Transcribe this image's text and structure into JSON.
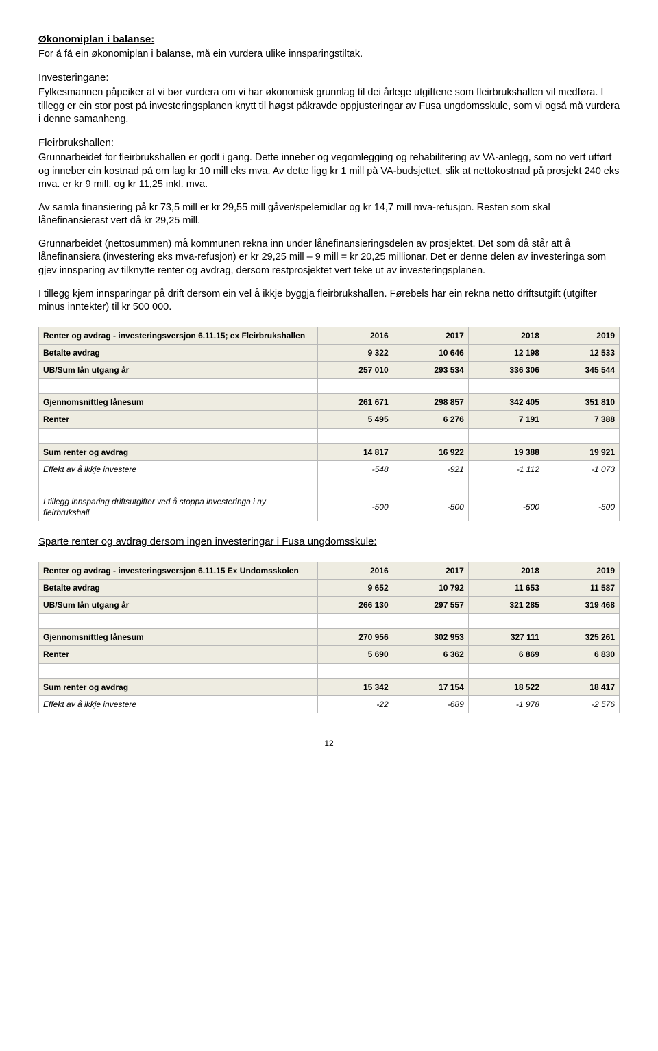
{
  "headings": {
    "okonomiplan": "Økonomiplan i balanse:",
    "investeringane": "Investeringane:",
    "fleirbrukshallen": "Fleirbrukshallen:",
    "sparte": "Sparte renter og avdrag dersom ingen investeringar i Fusa ungdomsskule:"
  },
  "paragraphs": {
    "p1": "For å få ein økonomiplan i balanse, må ein vurdera ulike innsparingstiltak.",
    "p2": "Fylkesmannen påpeiker at vi bør vurdera om vi har økonomisk grunnlag til dei årlege utgiftene som fleirbrukshallen vil medføra. I tillegg er ein stor post på investeringsplanen knytt til høgst påkravde oppjusteringar av Fusa ungdomsskule, som vi også må vurdera i denne samanheng.",
    "p3": "Grunnarbeidet for fleirbrukshallen er godt i gang. Dette inneber og vegomlegging og rehabilitering av VA-anlegg, som no vert utført og inneber ein kostnad på om lag kr 10 mill eks mva. Av dette ligg kr 1 mill på VA-budsjettet, slik at nettokostnad på prosjekt 240 eks mva. er kr 9 mill. og kr 11,25 inkl. mva.",
    "p4": "Av samla finansiering på kr 73,5 mill er kr 29,55 mill gåver/spelemidlar og kr 14,7 mill mva-refusjon. Resten som skal lånefinansierast vert då kr 29,25 mill.",
    "p5": "Grunnarbeidet (nettosummen) må kommunen rekna inn under lånefinansieringsdelen av prosjektet. Det som då står att å lånefinansiera (investering eks mva-refusjon) er kr 29,25 mill – 9 mill = kr 20,25 millionar. Det er denne delen av investeringa som gjev innsparing av tilknytte renter og avdrag, dersom restprosjektet vert teke ut av investeringsplanen.",
    "p6": "I tillegg kjem innsparingar på drift dersom ein vel å ikkje byggja fleirbrukshallen. Førebels har ein rekna netto driftsutgift (utgifter minus inntekter) til kr 500 000."
  },
  "table1": {
    "title": "Renter og avdrag - investeringsversjon 6.11.15; ex Fleirbrukshallen",
    "year_cols": [
      "2016",
      "2017",
      "2018",
      "2019"
    ],
    "rows": [
      {
        "label": "Betalte avdrag",
        "vals": [
          "9 322",
          "10 646",
          "12 198",
          "12 533"
        ],
        "cls": "highlight"
      },
      {
        "label": "UB/Sum lån utgang år",
        "vals": [
          "257 010",
          "293 534",
          "336 306",
          "345 544"
        ],
        "cls": "highlight"
      },
      {
        "label": "",
        "vals": [
          "",
          "",
          "",
          ""
        ],
        "cls": "blank"
      },
      {
        "label": "Gjennomsnittleg lånesum",
        "vals": [
          "261 671",
          "298 857",
          "342 405",
          "351 810"
        ],
        "cls": "highlight"
      },
      {
        "label": "Renter",
        "vals": [
          "5 495",
          "6 276",
          "7 191",
          "7 388"
        ],
        "cls": "highlight"
      },
      {
        "label": "",
        "vals": [
          "",
          "",
          "",
          ""
        ],
        "cls": "blank"
      },
      {
        "label": "Sum renter og avdrag",
        "vals": [
          "14 817",
          "16 922",
          "19 388",
          "19 921"
        ],
        "cls": "highlight"
      },
      {
        "label": "Effekt av å ikkje investere",
        "vals": [
          "-548",
          "-921",
          "-1 112",
          "-1 073"
        ],
        "cls": "italic"
      },
      {
        "label": "",
        "vals": [
          "",
          "",
          "",
          ""
        ],
        "cls": "blank"
      },
      {
        "label": "I tillegg innsparing driftsutgifter ved å stoppa investeringa i ny fleirbrukshall",
        "vals": [
          "-500",
          "-500",
          "-500",
          "-500"
        ],
        "cls": "italic"
      }
    ]
  },
  "table2": {
    "title": "Renter og avdrag - investeringsversjon 6.11.15 Ex Undomsskolen",
    "year_cols": [
      "2016",
      "2017",
      "2018",
      "2019"
    ],
    "rows": [
      {
        "label": "Betalte avdrag",
        "vals": [
          "9 652",
          "10 792",
          "11 653",
          "11 587"
        ],
        "cls": "highlight"
      },
      {
        "label": "UB/Sum lån utgang år",
        "vals": [
          "266 130",
          "297 557",
          "321 285",
          "319 468"
        ],
        "cls": "highlight"
      },
      {
        "label": "",
        "vals": [
          "",
          "",
          "",
          ""
        ],
        "cls": "blank"
      },
      {
        "label": "Gjennomsnittleg lånesum",
        "vals": [
          "270 956",
          "302 953",
          "327 111",
          "325 261"
        ],
        "cls": "highlight"
      },
      {
        "label": "Renter",
        "vals": [
          "5 690",
          "6 362",
          "6 869",
          "6 830"
        ],
        "cls": "highlight"
      },
      {
        "label": "",
        "vals": [
          "",
          "",
          "",
          ""
        ],
        "cls": "blank"
      },
      {
        "label": "Sum renter og avdrag",
        "vals": [
          "15 342",
          "17 154",
          "18 522",
          "18 417"
        ],
        "cls": "highlight"
      },
      {
        "label": "Effekt av å ikkje investere",
        "vals": [
          "-22",
          "-689",
          "-1 978",
          "-2 576"
        ],
        "cls": "italic"
      }
    ]
  },
  "page_number": "12",
  "style": {
    "background": "#ffffff",
    "text_color": "#000000",
    "table_header_bg": "#eeece1",
    "table_border": "#b8b8b8",
    "body_font_size": 14.5,
    "table_font_size": 12
  }
}
